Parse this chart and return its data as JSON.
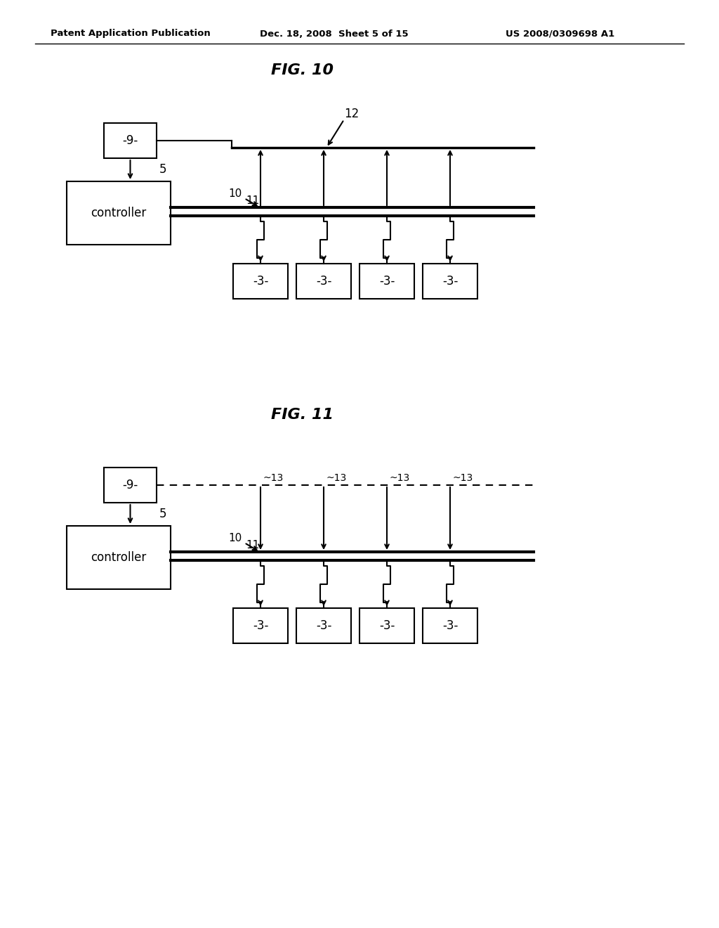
{
  "bg_color": "#ffffff",
  "text_color": "#000000",
  "header_left": "Patent Application Publication",
  "header_mid": "Dec. 18, 2008  Sheet 5 of 15",
  "header_right": "US 2008/0309698 A1",
  "fig10_title": "FIG. 10",
  "fig11_title": "FIG. 11"
}
